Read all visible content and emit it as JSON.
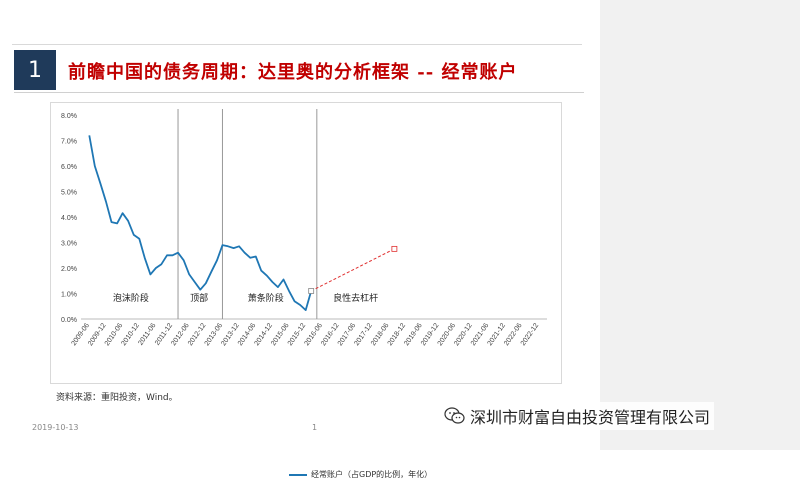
{
  "slide": {
    "number": "1",
    "title": "前瞻中国的债务周期：达里奥的分析框架 -- 经常账户",
    "source": "资料来源：重阳投资，Wind。",
    "date": "2019-10-13",
    "page": "1"
  },
  "watermark": {
    "text": "深圳市财富自由投资管理有限公司",
    "icon": "wechat-icon"
  },
  "chart_data": {
    "type": "line",
    "x": [
      "2009-06",
      "2009-12",
      "2010-06",
      "2010-12",
      "2011-06",
      "2011-12",
      "2012-06",
      "2012-12",
      "2013-06",
      "2013-12",
      "2014-06",
      "2014-12",
      "2015-06",
      "2015-12",
      "2016-06",
      "2016-12",
      "2017-06",
      "2017-12",
      "2018-06",
      "2018-12",
      "2019-06",
      "2019-12",
      "2020-06",
      "2020-12",
      "2021-06",
      "2021-12",
      "2022-06",
      "2022-12"
    ],
    "series": [
      {
        "name": "经常账户（占GDP的比例，年化）",
        "color": "#1f77b4",
        "points": [
          [
            0,
            7.2
          ],
          [
            0.33,
            6.0
          ],
          [
            0.67,
            5.3
          ],
          [
            1,
            4.6
          ],
          [
            1.33,
            3.8
          ],
          [
            1.67,
            3.75
          ],
          [
            2,
            4.15
          ],
          [
            2.33,
            3.85
          ],
          [
            2.67,
            3.3
          ],
          [
            3,
            3.15
          ],
          [
            3.33,
            2.4
          ],
          [
            3.67,
            1.75
          ],
          [
            4,
            2.0
          ],
          [
            4.33,
            2.15
          ],
          [
            4.67,
            2.5
          ],
          [
            5,
            2.5
          ],
          [
            5.33,
            2.6
          ],
          [
            5.67,
            2.3
          ],
          [
            6,
            1.75
          ],
          [
            6.33,
            1.45
          ],
          [
            6.67,
            1.15
          ],
          [
            7,
            1.4
          ],
          [
            7.33,
            1.85
          ],
          [
            7.67,
            2.3
          ],
          [
            8,
            2.9
          ],
          [
            8.33,
            2.85
          ],
          [
            8.67,
            2.78
          ],
          [
            9,
            2.85
          ],
          [
            9.33,
            2.6
          ],
          [
            9.67,
            2.4
          ],
          [
            10,
            2.45
          ],
          [
            10.33,
            1.9
          ],
          [
            10.67,
            1.7
          ],
          [
            11,
            1.45
          ],
          [
            11.33,
            1.25
          ],
          [
            11.67,
            1.55
          ],
          [
            12,
            1.1
          ],
          [
            12.33,
            0.7
          ],
          [
            12.67,
            0.55
          ],
          [
            13,
            0.35
          ],
          [
            13.33,
            1.1
          ]
        ]
      }
    ],
    "projection": {
      "color": "#e03030",
      "points": [
        [
          13.33,
          1.1
        ],
        [
          18.33,
          2.75
        ]
      ]
    },
    "y_ticks": [
      "0.0%",
      "1.0%",
      "2.0%",
      "3.0%",
      "4.0%",
      "5.0%",
      "6.0%",
      "7.0%",
      "8.0%"
    ],
    "ylim": [
      0,
      8
    ],
    "phase_dividers_x": [
      5.33,
      8.0,
      13.67
    ],
    "phase_labels": [
      {
        "text": "泡沫阶段",
        "x": 2.5
      },
      {
        "text": "顶部",
        "x": 6.6
      },
      {
        "text": "萧条阶段",
        "x": 10.6
      },
      {
        "text": "良性去杠杆",
        "x": 16.0
      }
    ],
    "phase_label_y": 0.7
  }
}
